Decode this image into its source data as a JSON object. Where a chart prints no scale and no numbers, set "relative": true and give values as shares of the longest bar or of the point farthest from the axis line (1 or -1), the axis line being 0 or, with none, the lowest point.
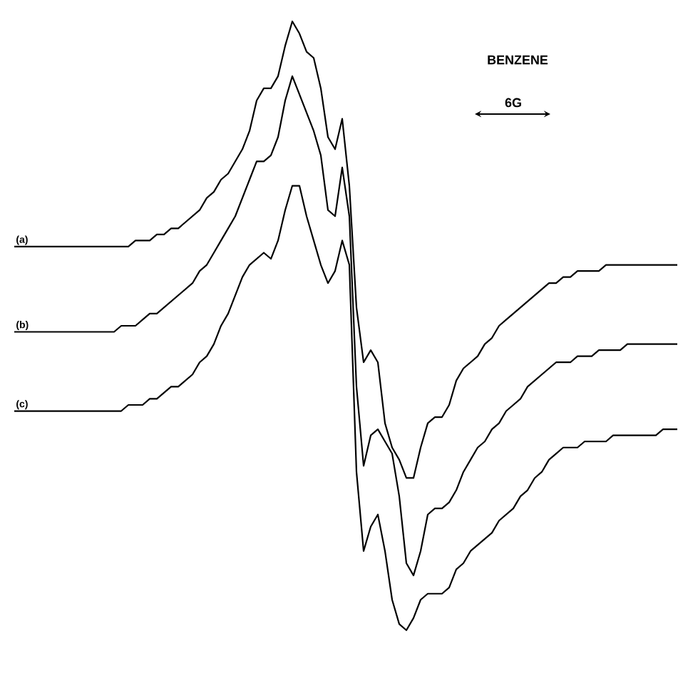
{
  "chart_data": {
    "type": "line",
    "relative": true,
    "legend": false,
    "annotations": [
      "BENZENE",
      "6G"
    ],
    "categories": [
      null,
      null,
      null,
      null,
      null,
      null,
      null,
      null,
      null,
      null,
      null,
      null,
      null,
      null,
      null,
      null,
      null,
      null,
      null,
      null,
      null,
      null,
      null,
      null,
      null,
      null,
      null,
      null,
      null,
      null,
      null,
      null,
      null,
      null,
      null,
      null,
      null,
      null,
      null,
      null,
      null,
      null,
      null,
      null,
      null,
      null,
      null,
      null,
      null,
      null,
      null,
      null,
      null,
      null,
      null,
      null,
      null,
      null,
      null,
      null,
      null,
      null,
      null,
      null,
      null,
      null,
      null,
      null,
      null,
      null,
      null,
      null,
      null,
      null,
      null,
      null,
      null,
      null,
      null,
      null,
      null,
      null,
      null,
      null,
      null,
      null,
      null,
      null,
      null,
      null,
      null,
      null,
      null,
      null
    ],
    "series": [
      {
        "name": "(a)",
        "color": "#000000",
        "values": [
          0.63,
          0.63,
          0.63,
          0.63,
          0.63,
          0.63,
          0.63,
          0.63,
          0.63,
          0.63,
          0.63,
          0.63,
          0.63,
          0.63,
          0.63,
          0.63,
          0.63,
          0.64,
          0.64,
          0.64,
          0.65,
          0.65,
          0.66,
          0.66,
          0.67,
          0.68,
          0.69,
          0.71,
          0.72,
          0.74,
          0.75,
          0.77,
          0.79,
          0.82,
          0.87,
          0.89,
          0.89,
          0.91,
          0.96,
          1.0,
          0.98,
          0.95,
          0.94,
          0.89,
          0.81,
          0.79,
          0.84,
          0.73,
          0.53,
          0.44,
          0.46,
          0.44,
          0.34,
          0.3,
          0.28,
          0.25,
          0.25,
          0.3,
          0.34,
          0.35,
          0.35,
          0.37,
          0.41,
          0.43,
          0.44,
          0.45,
          0.47,
          0.48,
          0.5,
          0.51,
          0.52,
          0.53,
          0.54,
          0.55,
          0.56,
          0.57,
          0.57,
          0.58,
          0.58,
          0.59,
          0.59,
          0.59,
          0.59,
          0.6,
          0.6,
          0.6,
          0.6,
          0.6,
          0.6,
          0.6,
          0.6,
          0.6,
          0.6,
          0.6
        ]
      },
      {
        "name": "(b)",
        "color": "#000000",
        "values": [
          0.49,
          0.49,
          0.49,
          0.49,
          0.49,
          0.49,
          0.49,
          0.49,
          0.49,
          0.49,
          0.49,
          0.49,
          0.49,
          0.49,
          0.49,
          0.5,
          0.5,
          0.5,
          0.51,
          0.52,
          0.52,
          0.53,
          0.54,
          0.55,
          0.56,
          0.57,
          0.59,
          0.6,
          0.62,
          0.64,
          0.66,
          0.68,
          0.71,
          0.74,
          0.77,
          0.77,
          0.78,
          0.81,
          0.87,
          0.91,
          0.88,
          0.85,
          0.82,
          0.78,
          0.69,
          0.68,
          0.76,
          0.68,
          0.4,
          0.27,
          0.32,
          0.33,
          0.31,
          0.29,
          0.22,
          0.11,
          0.09,
          0.13,
          0.19,
          0.2,
          0.2,
          0.21,
          0.23,
          0.26,
          0.28,
          0.3,
          0.31,
          0.33,
          0.34,
          0.36,
          0.37,
          0.38,
          0.4,
          0.41,
          0.42,
          0.43,
          0.44,
          0.44,
          0.44,
          0.45,
          0.45,
          0.45,
          0.46,
          0.46,
          0.46,
          0.46,
          0.47,
          0.47,
          0.47,
          0.47,
          0.47,
          0.47,
          0.47,
          0.47
        ]
      },
      {
        "name": "(c)",
        "color": "#000000",
        "values": [
          0.36,
          0.36,
          0.36,
          0.36,
          0.36,
          0.36,
          0.36,
          0.36,
          0.36,
          0.36,
          0.36,
          0.36,
          0.36,
          0.36,
          0.36,
          0.36,
          0.37,
          0.37,
          0.37,
          0.38,
          0.38,
          0.39,
          0.4,
          0.4,
          0.41,
          0.42,
          0.44,
          0.45,
          0.47,
          0.5,
          0.52,
          0.55,
          0.58,
          0.6,
          0.61,
          0.62,
          0.61,
          0.64,
          0.69,
          0.73,
          0.73,
          0.68,
          0.64,
          0.6,
          0.57,
          0.59,
          0.64,
          0.6,
          0.26,
          0.13,
          0.17,
          0.19,
          0.13,
          0.05,
          0.01,
          0,
          0.02,
          0.05,
          0.06,
          0.06,
          0.06,
          0.07,
          0.1,
          0.11,
          0.13,
          0.14,
          0.15,
          0.16,
          0.18,
          0.19,
          0.2,
          0.22,
          0.23,
          0.25,
          0.26,
          0.28,
          0.29,
          0.3,
          0.3,
          0.3,
          0.31,
          0.31,
          0.31,
          0.31,
          0.32,
          0.32,
          0.32,
          0.32,
          0.32,
          0.32,
          0.32,
          0.33,
          0.33,
          0.33
        ]
      }
    ]
  }
}
